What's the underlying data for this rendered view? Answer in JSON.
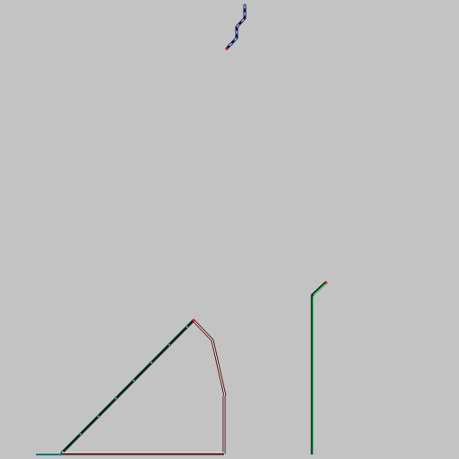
{
  "background": "#c3c3c3",
  "colors": {
    "dark": "#06281a",
    "white": "#ffffff",
    "dark_red": "#4a0a0a",
    "red_dot": "#ff0000",
    "navy": "#0a1450",
    "cyan": "#a8ffff",
    "green": "#3cff78",
    "teal": "#14787a"
  },
  "strokes": [
    {
      "name": "zigzag-fragment",
      "color": "navy"
    },
    {
      "name": "triangle-hypotenuse",
      "color": "dark"
    },
    {
      "name": "triangle-top-right-edge",
      "color": "dark_red"
    },
    {
      "name": "triangle-right-leg",
      "color": "dark_red"
    },
    {
      "name": "triangle-base",
      "color": "dark_red"
    },
    {
      "name": "base-left-stub",
      "color": "teal"
    },
    {
      "name": "vertical-pole",
      "color": "dark"
    },
    {
      "name": "pole-hook",
      "color": "dark"
    }
  ]
}
